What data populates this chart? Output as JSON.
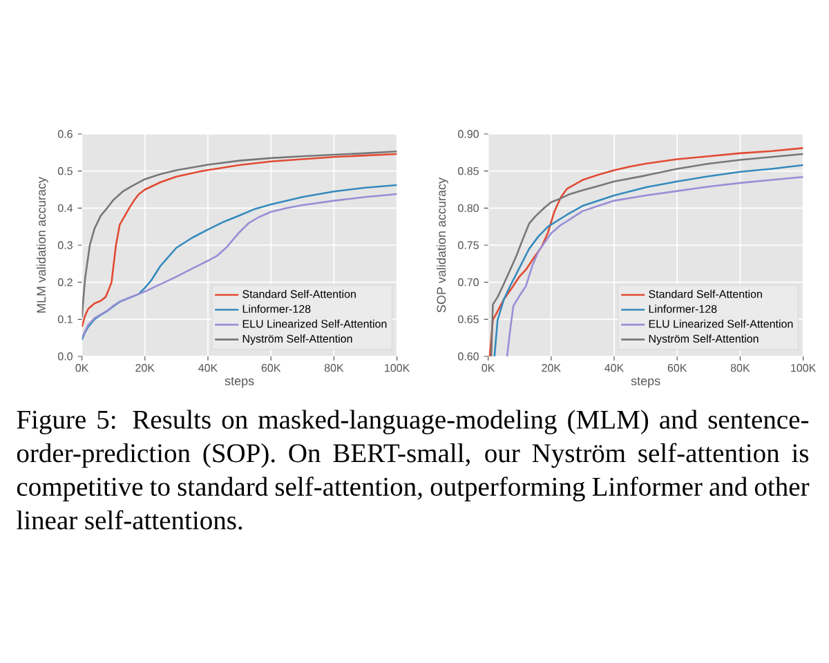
{
  "chart_data": [
    {
      "type": "line",
      "xlabel": "steps",
      "ylabel": "MLM validation accuracy",
      "xlim": [
        0,
        100000
      ],
      "xticks": [
        {
          "value": 0,
          "label": "0K"
        },
        {
          "value": 20000,
          "label": "20K"
        },
        {
          "value": 40000,
          "label": "40K"
        },
        {
          "value": 60000,
          "label": "60K"
        },
        {
          "value": 80000,
          "label": "80K"
        },
        {
          "value": 100000,
          "label": "100K"
        }
      ],
      "ylim": [
        0,
        0.6
      ],
      "yticks": [
        {
          "value": 0,
          "label": "0.0"
        },
        0.1,
        0.2,
        0.3,
        0.4,
        0.5,
        0.6
      ],
      "grid": true,
      "legend": "bottom right",
      "line_style": "solid",
      "annotations": [
        "Figure 5: Results on masked-language-modeling (MLM) and sentence-order-prediction (SOP). On BERT-small, our Nyström self-attention is competitive to standard self-attention, outperforming Linformer and other linear self-attentions."
      ],
      "series": [
        {
          "name": "Standard Self-Attention",
          "color": "#e24a33",
          "x": [
            0,
            1000,
            2000,
            4000,
            6000,
            7500,
            8500,
            9400,
            10800,
            12000,
            13000,
            15000,
            16500,
            18000,
            20000,
            25000,
            30000,
            38000,
            50000,
            60000,
            70000,
            80000,
            90000,
            100000
          ],
          "values": [
            0.08,
            0.11,
            0.128,
            0.143,
            0.15,
            0.16,
            0.18,
            0.2,
            0.3,
            0.355,
            0.37,
            0.4,
            0.42,
            0.437,
            0.45,
            0.47,
            0.485,
            0.5,
            0.516,
            0.526,
            0.532,
            0.538,
            0.542,
            0.546
          ]
        },
        {
          "name": "Linformer-128",
          "color": "#348abd",
          "x": [
            0,
            1000,
            2000,
            4000,
            6000,
            8000,
            10000,
            12000,
            15000,
            18000,
            20000,
            22000,
            25000,
            30000,
            35000,
            40000,
            45000,
            50000,
            55000,
            60000,
            70000,
            80000,
            90000,
            100000
          ],
          "values": [
            0.045,
            0.065,
            0.08,
            0.1,
            0.112,
            0.122,
            0.135,
            0.147,
            0.158,
            0.168,
            0.185,
            0.205,
            0.245,
            0.293,
            0.32,
            0.342,
            0.363,
            0.38,
            0.398,
            0.41,
            0.43,
            0.445,
            0.455,
            0.462
          ]
        },
        {
          "name": "ELU Linearized Self-Attention",
          "color": "#988ed5",
          "x": [
            0,
            1000,
            2000,
            4000,
            6000,
            8000,
            10000,
            12000,
            15000,
            18000,
            20000,
            25000,
            30000,
            35000,
            40000,
            43000,
            46000,
            50000,
            53000,
            56000,
            60000,
            65000,
            70000,
            80000,
            90000,
            100000
          ],
          "values": [
            0.05,
            0.068,
            0.085,
            0.103,
            0.113,
            0.123,
            0.137,
            0.148,
            0.158,
            0.168,
            0.175,
            0.195,
            0.215,
            0.237,
            0.258,
            0.272,
            0.295,
            0.335,
            0.36,
            0.375,
            0.39,
            0.4,
            0.408,
            0.42,
            0.43,
            0.438
          ]
        },
        {
          "name": "Nyström Self-Attention",
          "color": "#777777",
          "x": [
            0,
            500,
            1000,
            2500,
            4000,
            6000,
            8000,
            10000,
            13000,
            16000,
            20000,
            25000,
            30000,
            40000,
            50000,
            60000,
            70000,
            80000,
            90000,
            100000
          ],
          "values": [
            0.105,
            0.16,
            0.21,
            0.3,
            0.345,
            0.38,
            0.4,
            0.422,
            0.445,
            0.46,
            0.478,
            0.492,
            0.502,
            0.517,
            0.528,
            0.535,
            0.54,
            0.544,
            0.548,
            0.553
          ]
        }
      ]
    },
    {
      "type": "line",
      "xlabel": "steps",
      "ylabel": "SOP validation accuracy",
      "xlim": [
        0,
        100000
      ],
      "xticks": [
        {
          "value": 0,
          "label": "0K"
        },
        {
          "value": 20000,
          "label": "20K"
        },
        {
          "value": 40000,
          "label": "40K"
        },
        {
          "value": 60000,
          "label": "60K"
        },
        {
          "value": 80000,
          "label": "80K"
        },
        {
          "value": 100000,
          "label": "100K"
        }
      ],
      "ylim": [
        0.6,
        0.9
      ],
      "yticks": [
        {
          "value": 0.6,
          "label": "0.60"
        },
        0.65,
        {
          "value": 0.7,
          "label": "0.70"
        },
        0.75,
        {
          "value": 0.8,
          "label": "0.80"
        },
        0.85,
        {
          "value": 0.9,
          "label": "0.90"
        }
      ],
      "grid": true,
      "legend": "bottom right",
      "line_style": "solid",
      "series": [
        {
          "name": "Standard Self-Attention",
          "color": "#e24a33",
          "x": [
            500,
            1500,
            3000,
            5000,
            7000,
            10000,
            12000,
            15000,
            17000,
            19000,
            21000,
            23000,
            25000,
            30000,
            35000,
            40000,
            45000,
            50000,
            60000,
            70000,
            80000,
            90000,
            100000
          ],
          "values": [
            0.6,
            0.649,
            0.661,
            0.677,
            0.689,
            0.708,
            0.717,
            0.736,
            0.748,
            0.767,
            0.795,
            0.814,
            0.826,
            0.838,
            0.845,
            0.851,
            0.856,
            0.86,
            0.866,
            0.87,
            0.874,
            0.877,
            0.881
          ]
        },
        {
          "name": "Linformer-128",
          "color": "#348abd",
          "x": [
            2000,
            3000,
            5000,
            7000,
            10000,
            13000,
            16000,
            19000,
            22000,
            25000,
            30000,
            35000,
            40000,
            50000,
            60000,
            70000,
            80000,
            90000,
            100000
          ],
          "values": [
            0.6,
            0.649,
            0.677,
            0.695,
            0.72,
            0.745,
            0.762,
            0.775,
            0.783,
            0.791,
            0.803,
            0.81,
            0.817,
            0.828,
            0.836,
            0.843,
            0.849,
            0.853,
            0.858
          ]
        },
        {
          "name": "ELU Linearized Self-Attention",
          "color": "#988ed5",
          "x": [
            6000,
            7000,
            8000,
            10000,
            12000,
            14000,
            16000,
            18000,
            20000,
            23000,
            26000,
            30000,
            35000,
            40000,
            50000,
            60000,
            70000,
            80000,
            90000,
            100000
          ],
          "values": [
            0.6,
            0.636,
            0.668,
            0.682,
            0.695,
            0.722,
            0.742,
            0.754,
            0.766,
            0.777,
            0.785,
            0.796,
            0.803,
            0.81,
            0.817,
            0.823,
            0.829,
            0.834,
            0.838,
            0.842
          ]
        },
        {
          "name": "Nyström Self-Attention",
          "color": "#777777",
          "x": [
            1000,
            1500,
            3000,
            5000,
            7000,
            9000,
            11000,
            13000,
            15000,
            18000,
            20000,
            23000,
            26000,
            30000,
            35000,
            40000,
            50000,
            60000,
            70000,
            80000,
            90000,
            100000
          ],
          "values": [
            0.6,
            0.67,
            0.68,
            0.698,
            0.717,
            0.736,
            0.758,
            0.779,
            0.789,
            0.801,
            0.808,
            0.813,
            0.819,
            0.824,
            0.83,
            0.836,
            0.844,
            0.853,
            0.86,
            0.865,
            0.869,
            0.873
          ]
        }
      ]
    }
  ]
}
